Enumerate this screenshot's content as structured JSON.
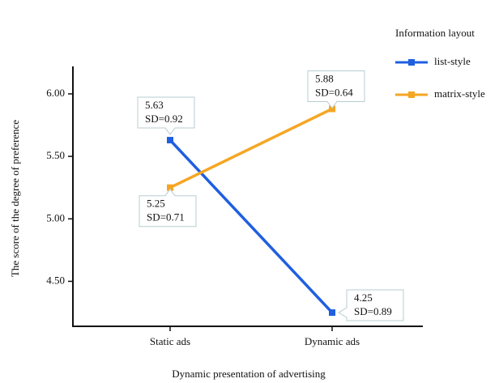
{
  "chart_data": {
    "type": "line",
    "x_label": "Dynamic presentation of advertising",
    "y_label": "The score of the degree of preference",
    "categories": [
      "Static ads",
      "Dynamic ads"
    ],
    "legend_title": "Information layout",
    "legend": "right",
    "series": [
      {
        "name": "list-style",
        "color": "#1f5fe0",
        "values": [
          5.63,
          4.25
        ],
        "sd_labels": [
          "SD=0.92",
          "SD=0.89"
        ]
      },
      {
        "name": "matrix-style",
        "color": "#f5a623",
        "values": [
          5.25,
          5.88
        ],
        "sd_labels": [
          "SD=0.71",
          "SD=0.64"
        ]
      }
    ],
    "ylim": [
      4.14,
      6.22
    ],
    "yticks": [
      {
        "value": 4.5,
        "label": "4.50"
      },
      {
        "value": 5,
        "label": "5.00"
      },
      {
        "value": 5.5,
        "label": "5.50"
      },
      {
        "value": 6,
        "label": "6.00"
      }
    ]
  }
}
